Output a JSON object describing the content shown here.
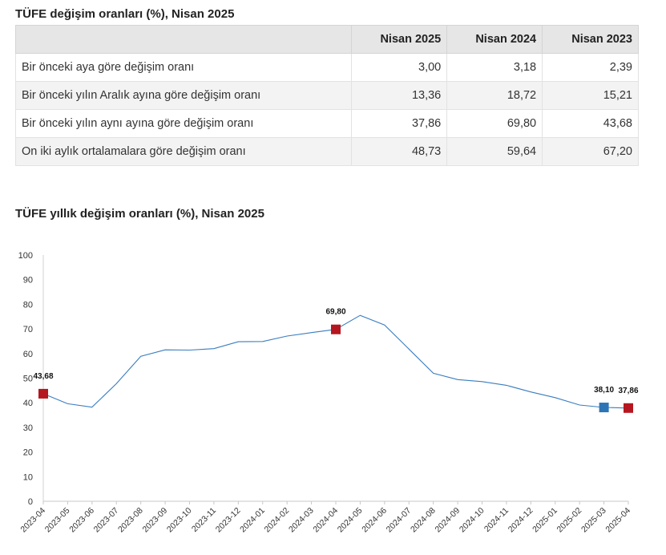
{
  "table": {
    "title": "TÜFE değişim oranları (%), Nisan 2025",
    "headers": [
      "",
      "Nisan 2025",
      "Nisan 2024",
      "Nisan 2023"
    ],
    "rows": [
      {
        "label": "Bir önceki aya göre değişim oranı",
        "values": [
          "3,00",
          "3,18",
          "2,39"
        ]
      },
      {
        "label": "Bir önceki yılın Aralık ayına göre değişim oranı",
        "values": [
          "13,36",
          "18,72",
          "15,21"
        ]
      },
      {
        "label": "Bir önceki yılın aynı ayına göre değişim oranı",
        "values": [
          "37,86",
          "69,80",
          "43,68"
        ]
      },
      {
        "label": "On iki aylık ortalamalara göre değişim oranı",
        "values": [
          "48,73",
          "59,64",
          "67,20"
        ]
      }
    ]
  },
  "chart_data": {
    "type": "line",
    "title": "TÜFE yıllık değişim oranları (%), Nisan 2025",
    "xlabel": "",
    "ylabel": "",
    "ylim": [
      0,
      100
    ],
    "yticks": [
      0,
      10,
      20,
      30,
      40,
      50,
      60,
      70,
      80,
      90,
      100
    ],
    "grid": false,
    "legend": "none",
    "x": [
      "2023-04",
      "2023-05",
      "2023-06",
      "2023-07",
      "2023-08",
      "2023-09",
      "2023-10",
      "2023-11",
      "2023-12",
      "2024-01",
      "2024-02",
      "2024-03",
      "2024-04",
      "2024-05",
      "2024-06",
      "2024-07",
      "2024-08",
      "2024-09",
      "2024-10",
      "2024-11",
      "2024-12",
      "2025-01",
      "2025-02",
      "2025-03",
      "2025-04"
    ],
    "series": [
      {
        "values": [
          43.68,
          39.6,
          38.2,
          47.8,
          58.9,
          61.5,
          61.4,
          62.0,
          64.8,
          64.9,
          67.1,
          68.5,
          69.8,
          75.5,
          71.6,
          61.8,
          52.0,
          49.4,
          48.6,
          47.1,
          44.4,
          42.1,
          39.1,
          38.1,
          37.86
        ],
        "color": "#3a7dbf"
      }
    ],
    "highlights": [
      {
        "x": "2023-04",
        "label": "43,68",
        "color": "#b5161f"
      },
      {
        "x": "2024-04",
        "label": "69,80",
        "color": "#b5161f"
      },
      {
        "x": "2025-03",
        "label": "38,10",
        "color": "#2e75b6"
      },
      {
        "x": "2025-04",
        "label": "37,86",
        "color": "#b5161f"
      }
    ]
  }
}
